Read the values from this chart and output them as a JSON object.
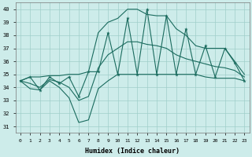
{
  "x": [
    0,
    1,
    2,
    3,
    4,
    5,
    6,
    7,
    8,
    9,
    10,
    11,
    12,
    13,
    14,
    15,
    16,
    17,
    18,
    19,
    20,
    21,
    22,
    23
  ],
  "y_main": [
    34.5,
    34.8,
    33.8,
    34.8,
    34.3,
    34.8,
    33.3,
    35.2,
    35.2,
    38.2,
    35.0,
    39.3,
    35.0,
    40.0,
    35.0,
    39.5,
    35.0,
    38.5,
    35.0,
    37.2,
    34.8,
    37.0,
    35.9,
    34.5
  ],
  "y_upper": [
    34.5,
    34.8,
    34.8,
    34.9,
    34.9,
    35.0,
    35.0,
    35.2,
    38.2,
    39.0,
    39.3,
    40.0,
    40.0,
    39.6,
    39.5,
    39.5,
    38.5,
    38.0,
    37.2,
    37.0,
    37.0,
    37.0,
    36.0,
    35.0
  ],
  "y_lower": [
    34.5,
    33.9,
    33.8,
    34.5,
    34.0,
    33.2,
    31.3,
    31.5,
    33.9,
    34.5,
    35.0,
    35.0,
    35.0,
    35.0,
    35.0,
    35.0,
    35.0,
    35.0,
    35.0,
    34.8,
    34.7,
    34.7,
    34.7,
    34.5
  ],
  "y_avg": [
    34.5,
    34.3,
    34.0,
    34.6,
    34.4,
    34.0,
    33.0,
    33.3,
    35.5,
    36.5,
    37.0,
    37.5,
    37.5,
    37.3,
    37.2,
    37.0,
    36.5,
    36.2,
    36.0,
    35.8,
    35.6,
    35.5,
    35.3,
    34.8
  ],
  "bg_color": "#cdecea",
  "grid_color": "#a0ceca",
  "line_color": "#1a6b5e",
  "ylabel_vals": [
    31,
    32,
    33,
    34,
    35,
    36,
    37,
    38,
    39,
    40
  ],
  "ylim": [
    30.5,
    40.5
  ],
  "xlim": [
    -0.5,
    23.5
  ],
  "xlabel": "Humidex (Indice chaleur)"
}
